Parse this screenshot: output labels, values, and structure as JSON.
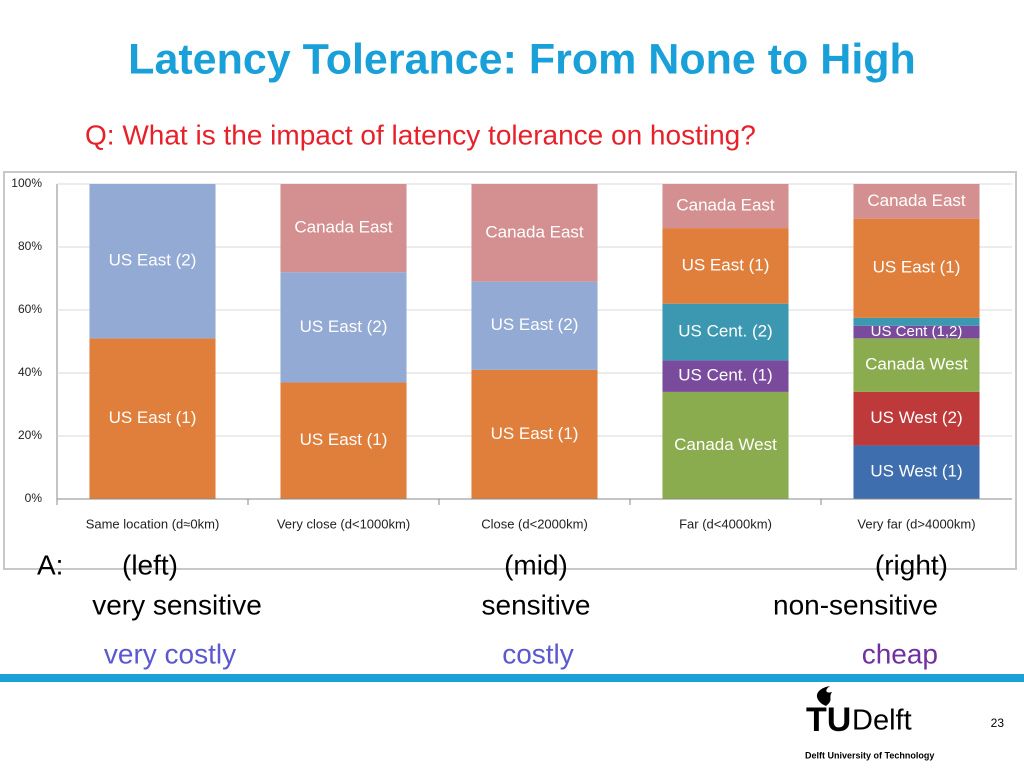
{
  "title": "Latency Tolerance: From None to High",
  "subtitle": "Q: What is the impact of latency tolerance on hosting?",
  "chart_data": {
    "type": "stacked_bar",
    "categories": [
      "Same location (d≈0km)",
      "Very close (d<1000km)",
      "Close (d<2000km)",
      "Far (d<4000km)",
      "Very far (d>4000km)"
    ],
    "series": [
      {
        "name": "US West (1)",
        "color": "#3e6eae",
        "values": [
          null,
          null,
          null,
          null,
          17
        ]
      },
      {
        "name": "US West (2)",
        "color": "#be3a3a",
        "values": [
          null,
          null,
          null,
          null,
          17
        ]
      },
      {
        "name": "Canada West",
        "color": "#8aab4e",
        "values": [
          null,
          null,
          null,
          34,
          17
        ]
      },
      {
        "name": "US Cent. (1)",
        "color": "#7a4b9c",
        "values": [
          null,
          null,
          null,
          10,
          null
        ]
      },
      {
        "name": "US Cent (1,2)",
        "color": "#7a4b9c",
        "values": [
          null,
          null,
          null,
          null,
          4
        ]
      },
      {
        "name": "US Cent. (2)",
        "color": "#3c98b0",
        "values": [
          null,
          null,
          null,
          18,
          2.5
        ]
      },
      {
        "name": "US East (1)",
        "color": "#e07f3c",
        "values": [
          51,
          37,
          41,
          24,
          31.5
        ]
      },
      {
        "name": "US East (2)",
        "color": "#93aad4",
        "values": [
          49,
          35,
          28,
          null,
          null
        ]
      },
      {
        "name": "Canada East",
        "color": "#d49090",
        "values": [
          null,
          28,
          31,
          14,
          11
        ]
      }
    ],
    "ylim": [
      0,
      100
    ],
    "yticks": [
      {
        "value": 0,
        "label": "0%"
      },
      {
        "value": 20,
        "label": "20%"
      },
      {
        "value": 40,
        "label": "40%"
      },
      {
        "value": 60,
        "label": "60%"
      },
      {
        "value": 80,
        "label": "80%"
      },
      {
        "value": 100,
        "label": "100%"
      }
    ],
    "grid": true
  },
  "answer": {
    "prefix": "A:",
    "columns": [
      {
        "position": "(left)",
        "sensitivity": "very sensitive",
        "cost": "very costly"
      },
      {
        "position": "(mid)",
        "sensitivity": "sensitive",
        "cost": "costly"
      },
      {
        "position": "(right)",
        "sensitivity": "non-sensitive",
        "cost": "cheap"
      }
    ]
  },
  "footer": {
    "logo_prefix": "TU",
    "logo_suffix": "Delft",
    "institution": "Delft University of Technology",
    "page": 23
  }
}
